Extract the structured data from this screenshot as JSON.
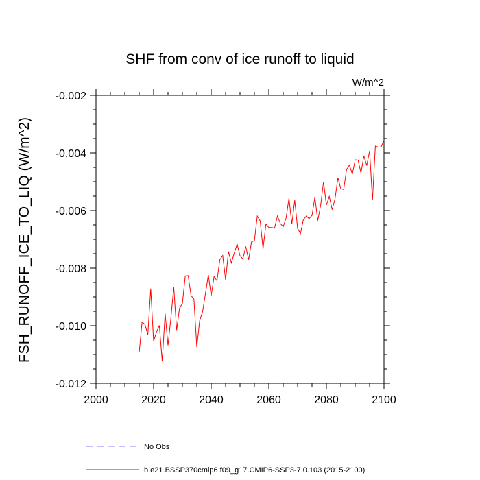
{
  "chart_data": {
    "type": "line",
    "title": "SHF from conv of ice runoff to liquid",
    "units": "W/m^2",
    "ylabel": "FSH_RUNOFF_ICE_TO_LIQ  (W/m^2)",
    "xlabel": "",
    "xlim": [
      2000,
      2100
    ],
    "ylim": [
      -0.012,
      -0.002
    ],
    "x_ticks": [
      2000,
      2020,
      2040,
      2060,
      2080,
      2100
    ],
    "x_tick_labels": [
      "2000",
      "2020",
      "2040",
      "2060",
      "2080",
      "2100"
    ],
    "y_ticks": [
      -0.012,
      -0.01,
      -0.008,
      -0.006,
      -0.004,
      -0.002
    ],
    "y_tick_labels": [
      "-0.012",
      "-0.010",
      "-0.008",
      "-0.006",
      "-0.004",
      "-0.002"
    ],
    "series": [
      {
        "name": "b.e21.BSSP370cmip6.f09_g17.CMIP6-SSP3-7.0.103 (2015-2100)",
        "color": "#ff0000",
        "x_start": 2015,
        "values": [
          -0.01093,
          -0.00987,
          -0.00996,
          -0.01031,
          -0.00871,
          -0.01054,
          -0.01022,
          -0.00999,
          -0.01124,
          -0.00957,
          -0.01068,
          -0.00974,
          -0.00866,
          -0.01015,
          -0.00939,
          -0.00923,
          -0.00827,
          -0.00826,
          -0.00895,
          -0.00908,
          -0.01074,
          -0.00982,
          -0.00952,
          -0.00889,
          -0.00823,
          -0.00896,
          -0.00829,
          -0.00844,
          -0.00771,
          -0.00756,
          -0.00841,
          -0.00742,
          -0.00782,
          -0.00748,
          -0.00717,
          -0.00757,
          -0.00768,
          -0.00725,
          -0.00771,
          -0.00709,
          -0.00705,
          -0.00619,
          -0.00636,
          -0.00733,
          -0.00647,
          -0.00659,
          -0.00659,
          -0.00661,
          -0.00619,
          -0.00645,
          -0.00656,
          -0.00626,
          -0.00557,
          -0.00647,
          -0.00564,
          -0.00662,
          -0.0068,
          -0.00632,
          -0.00619,
          -0.00628,
          -0.00617,
          -0.00553,
          -0.00635,
          -0.00582,
          -0.005,
          -0.00581,
          -0.00551,
          -0.00597,
          -0.00559,
          -0.00486,
          -0.00524,
          -0.00527,
          -0.00458,
          -0.00442,
          -0.00474,
          -0.00424,
          -0.00425,
          -0.0047,
          -0.0041,
          -0.00444,
          -0.00393,
          -0.00564,
          -0.00376,
          -0.0038,
          -0.00379,
          -0.00356
        ]
      },
      {
        "name": "No Obs",
        "color": "#8080ff",
        "values": []
      }
    ],
    "legend": [
      "No Obs",
      "b.e21.BSSP370cmip6.f09_g17.CMIP6-SSP3-7.0.103 (2015-2100)"
    ],
    "legend_placement": "bottom",
    "grid": false
  }
}
